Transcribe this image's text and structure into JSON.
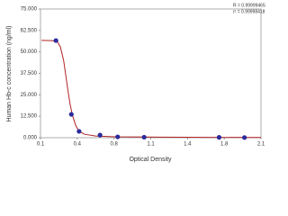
{
  "chart_data": {
    "type": "scatter",
    "y_label": "Human Hb-c concentration (ng/ml)",
    "x_label": "Optical Density",
    "annotations": [
      "R = 0.99999465",
      "r² = 0.99998418"
    ],
    "x": [
      0.24,
      0.38,
      0.45,
      0.64,
      0.8,
      1.04,
      1.72,
      1.95
    ],
    "series": [
      {
        "color": "#2a2a9c",
        "values": [
          56.6,
          13.6,
          3.7,
          1.5,
          0.5,
          0.3,
          0.2,
          0.1
        ]
      }
    ],
    "curve": {
      "color": "#b22222",
      "x": [
        0.11,
        0.2,
        0.25,
        0.28,
        0.31,
        0.33,
        0.35,
        0.37,
        0.39,
        0.42,
        0.45,
        0.5,
        0.6,
        0.8,
        1.2,
        2.1
      ],
      "values": [
        56.7,
        56.6,
        56.2,
        53,
        45,
        36,
        27,
        19,
        13,
        7,
        3.7,
        2,
        1,
        0.5,
        0.3,
        0.1
      ]
    },
    "xlim": [
      0.1,
      2.1
    ],
    "xticks": [
      {
        "value": 0.1,
        "label": "0.1"
      },
      {
        "value": 0.4333,
        "label": "0.4"
      },
      {
        "value": 0.7667,
        "label": "0.8"
      },
      {
        "value": 1.1,
        "label": "1.1"
      },
      {
        "value": 1.4333,
        "label": "1.4"
      },
      {
        "value": 1.7667,
        "label": "1.8"
      },
      {
        "value": 2.1,
        "label": "2.1"
      }
    ],
    "ylim": [
      0,
      75
    ],
    "yticks": [
      {
        "value": 0,
        "label": "0.000"
      },
      {
        "value": 12.5,
        "label": "12.500"
      },
      {
        "value": 25,
        "label": "25.000"
      },
      {
        "value": 37.5,
        "label": "37.500"
      },
      {
        "value": 50,
        "label": "50.000"
      },
      {
        "value": 62.5,
        "label": "62.500"
      },
      {
        "value": 75,
        "label": "75.000"
      }
    ],
    "grid": false
  }
}
